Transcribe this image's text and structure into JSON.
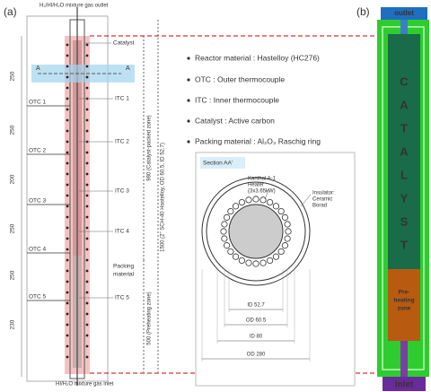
{
  "panel_a": {
    "label": "(a)",
    "outlet": "H₂/HI/H₂O mixture gas outlet",
    "inlet": "HI/H₂O mixture gas inlet",
    "catalyst": "Catalyst",
    "section_marks": [
      "A",
      "A"
    ],
    "dimensions": [
      "250",
      "250",
      "200",
      "250",
      "250",
      "230"
    ],
    "otc": [
      "OTC 1",
      "OTC 2",
      "OTC 3",
      "OTC 4",
      "OTC 5"
    ],
    "itc": [
      "ITC 1",
      "ITC 2",
      "ITC 3",
      "ITC 4",
      "ITC 5"
    ],
    "packing": [
      "Packing",
      "material"
    ],
    "zones": [
      "980 (Catalyst-packed zone)",
      "1500 (2\" SCH-40 Hastelloy, OD 60.5, ID 52.7)",
      "500 (Preheating zone)"
    ]
  },
  "notes": [
    "Reactor material : Hastelloy (HC276)",
    "OTC : Outer thermocouple",
    "ITC : Inner thermocouple",
    "Catalyst : Active carbon",
    "Packing material : Al₂O₃ Raschig ring"
  ],
  "section": {
    "title": "Section AA'",
    "heater": [
      "Kanthal A-1",
      "Heater",
      "(3x3.65kW)"
    ],
    "insulator": [
      "Insulator:",
      "Ceramic",
      "Borad"
    ],
    "dimensions": [
      "ID 52.7",
      "OD 60.5",
      "ID 80",
      "OD 280"
    ]
  },
  "panel_b": {
    "label": "(b)",
    "outlet": "outlet",
    "letters": [
      "C",
      "A",
      "T",
      "A",
      "L",
      "Y",
      "S",
      "T"
    ],
    "preheat": [
      "Pre-",
      "heating",
      "zone"
    ],
    "inlet": "Inlet"
  }
}
